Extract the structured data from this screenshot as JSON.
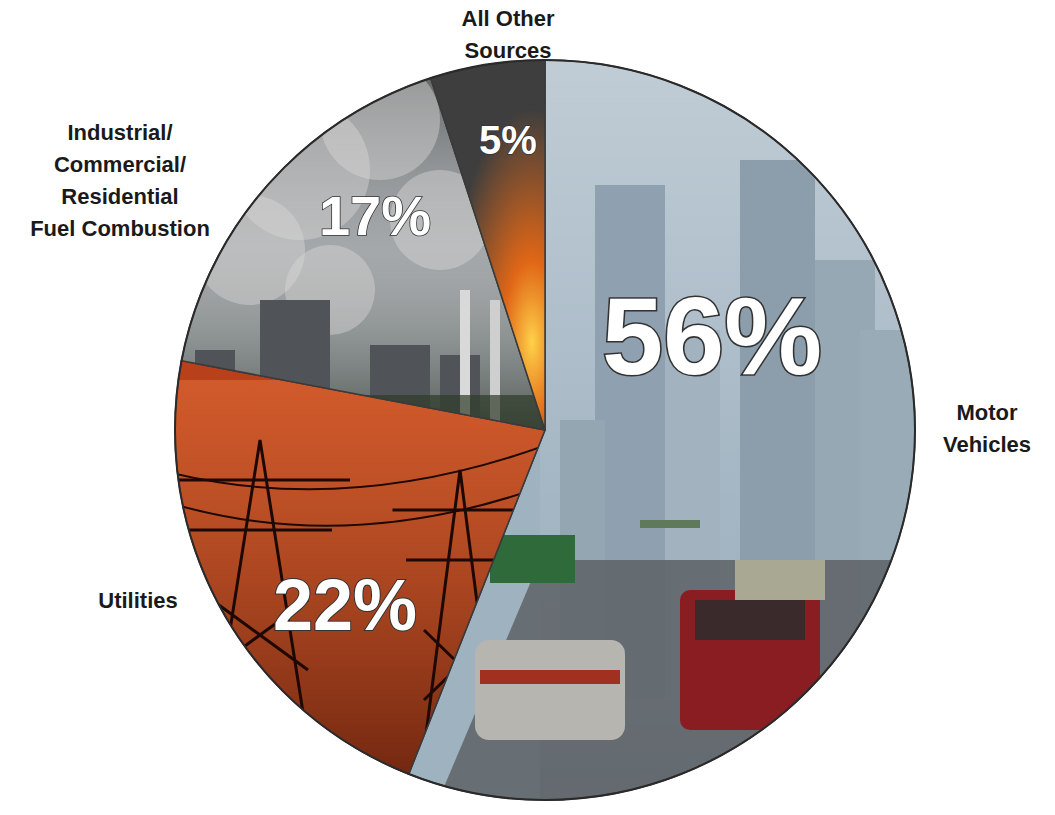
{
  "chart_data": {
    "type": "pie",
    "categories": [
      "Motor Vehicles",
      "Utilities",
      "Industrial/ Commercial/ Residential Fuel Combustion",
      "All Other Sources"
    ],
    "values": [
      56,
      22,
      17,
      5
    ],
    "value_labels": [
      "56%",
      "22%",
      "17%",
      "5%"
    ],
    "colors": [
      "#9fb2c0",
      "#b8401a",
      "#868b8f",
      "#3e3e3e"
    ],
    "data_labels": true
  }
}
